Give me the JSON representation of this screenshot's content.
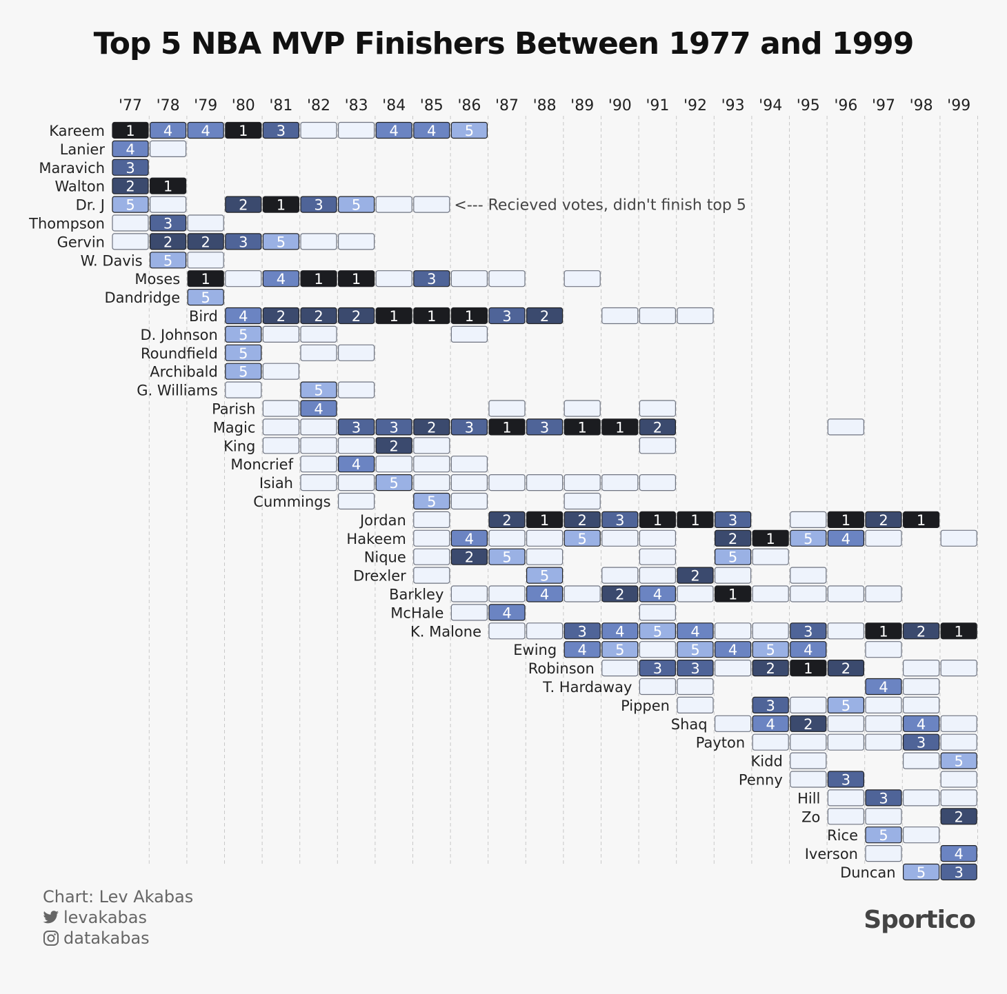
{
  "title": "Top 5 NBA MVP Finishers Between 1977 and 1999",
  "annotation": "<--- Recieved votes, didn't finish top 5",
  "credits": {
    "chart_by": "Chart: Lev Akabas",
    "twitter": "levakabas",
    "instagram": "datakabas"
  },
  "brand": "Sportico",
  "colors": {
    "1": "#1b1c20",
    "2": "#3b4a6e",
    "3": "#4f6498",
    "4": "#6b84c2",
    "5": "#9ab1e4",
    "votes": "#eef3fc"
  },
  "chart_data": {
    "type": "table",
    "years": [
      "'77",
      "'78",
      "'79",
      "'80",
      "'81",
      "'82",
      "'83",
      "'84",
      "'85",
      "'86",
      "'87",
      "'88",
      "'89",
      "'90",
      "'91",
      "'92",
      "'93",
      "'94",
      "'95",
      "'96",
      "'97",
      "'98",
      "'99"
    ],
    "legend_note": "0 = Recieved votes, didn't finish top 5; null = no votes",
    "players": [
      {
        "name": "Kareem",
        "ranks": [
          1,
          4,
          4,
          1,
          3,
          0,
          0,
          4,
          4,
          5,
          null,
          null,
          null,
          null,
          null,
          null,
          null,
          null,
          null,
          null,
          null,
          null,
          null
        ]
      },
      {
        "name": "Lanier",
        "ranks": [
          4,
          0,
          null,
          null,
          null,
          null,
          null,
          null,
          null,
          null,
          null,
          null,
          null,
          null,
          null,
          null,
          null,
          null,
          null,
          null,
          null,
          null,
          null
        ]
      },
      {
        "name": "Maravich",
        "ranks": [
          3,
          null,
          null,
          null,
          null,
          null,
          null,
          null,
          null,
          null,
          null,
          null,
          null,
          null,
          null,
          null,
          null,
          null,
          null,
          null,
          null,
          null,
          null
        ]
      },
      {
        "name": "Walton",
        "ranks": [
          2,
          1,
          null,
          null,
          null,
          null,
          null,
          null,
          null,
          null,
          null,
          null,
          null,
          null,
          null,
          null,
          null,
          null,
          null,
          null,
          null,
          null,
          null
        ]
      },
      {
        "name": "Dr. J",
        "ranks": [
          5,
          0,
          null,
          2,
          1,
          3,
          5,
          0,
          0,
          null,
          null,
          null,
          null,
          null,
          null,
          null,
          null,
          null,
          null,
          null,
          null,
          null,
          null
        ]
      },
      {
        "name": "Thompson",
        "ranks": [
          0,
          3,
          0,
          null,
          null,
          null,
          null,
          null,
          null,
          null,
          null,
          null,
          null,
          null,
          null,
          null,
          null,
          null,
          null,
          null,
          null,
          null,
          null
        ]
      },
      {
        "name": "Gervin",
        "ranks": [
          0,
          2,
          2,
          3,
          5,
          0,
          0,
          null,
          null,
          null,
          null,
          null,
          null,
          null,
          null,
          null,
          null,
          null,
          null,
          null,
          null,
          null,
          null
        ]
      },
      {
        "name": "W. Davis",
        "ranks": [
          null,
          5,
          0,
          null,
          null,
          null,
          null,
          null,
          null,
          null,
          null,
          null,
          null,
          null,
          null,
          null,
          null,
          null,
          null,
          null,
          null,
          null,
          null
        ]
      },
      {
        "name": "Moses",
        "ranks": [
          null,
          null,
          1,
          0,
          4,
          1,
          1,
          0,
          3,
          0,
          0,
          null,
          0,
          null,
          null,
          null,
          null,
          null,
          null,
          null,
          null,
          null,
          null
        ]
      },
      {
        "name": "Dandridge",
        "ranks": [
          null,
          null,
          5,
          null,
          null,
          null,
          null,
          null,
          null,
          null,
          null,
          null,
          null,
          null,
          null,
          null,
          null,
          null,
          null,
          null,
          null,
          null,
          null
        ]
      },
      {
        "name": "Bird",
        "ranks": [
          null,
          null,
          null,
          4,
          2,
          2,
          2,
          1,
          1,
          1,
          3,
          2,
          null,
          0,
          0,
          0,
          null,
          null,
          null,
          null,
          null,
          null,
          null
        ]
      },
      {
        "name": "D. Johnson",
        "ranks": [
          null,
          null,
          null,
          5,
          0,
          0,
          null,
          null,
          null,
          0,
          null,
          null,
          null,
          null,
          null,
          null,
          null,
          null,
          null,
          null,
          null,
          null,
          null
        ]
      },
      {
        "name": "Roundfield",
        "ranks": [
          null,
          null,
          null,
          5,
          null,
          0,
          0,
          null,
          null,
          null,
          null,
          null,
          null,
          null,
          null,
          null,
          null,
          null,
          null,
          null,
          null,
          null,
          null
        ]
      },
      {
        "name": "Archibald",
        "ranks": [
          null,
          null,
          null,
          5,
          0,
          null,
          null,
          null,
          null,
          null,
          null,
          null,
          null,
          null,
          null,
          null,
          null,
          null,
          null,
          null,
          null,
          null,
          null
        ]
      },
      {
        "name": "G. Williams",
        "ranks": [
          null,
          null,
          null,
          0,
          null,
          5,
          0,
          null,
          null,
          null,
          null,
          null,
          null,
          null,
          null,
          null,
          null,
          null,
          null,
          null,
          null,
          null,
          null
        ]
      },
      {
        "name": "Parish",
        "ranks": [
          null,
          null,
          null,
          null,
          0,
          4,
          null,
          null,
          null,
          null,
          0,
          null,
          0,
          null,
          0,
          null,
          null,
          null,
          null,
          null,
          null,
          null,
          null
        ]
      },
      {
        "name": "Magic",
        "ranks": [
          null,
          null,
          null,
          null,
          0,
          0,
          3,
          3,
          2,
          3,
          1,
          3,
          1,
          1,
          2,
          null,
          null,
          null,
          null,
          0,
          null,
          null,
          null
        ]
      },
      {
        "name": "King",
        "ranks": [
          null,
          null,
          null,
          null,
          0,
          0,
          0,
          2,
          0,
          null,
          null,
          null,
          null,
          null,
          0,
          null,
          null,
          null,
          null,
          null,
          null,
          null,
          null
        ]
      },
      {
        "name": "Moncrief",
        "ranks": [
          null,
          null,
          null,
          null,
          null,
          0,
          4,
          0,
          0,
          0,
          null,
          null,
          null,
          null,
          null,
          null,
          null,
          null,
          null,
          null,
          null,
          null,
          null
        ]
      },
      {
        "name": "Isiah",
        "ranks": [
          null,
          null,
          null,
          null,
          null,
          0,
          0,
          5,
          0,
          0,
          0,
          0,
          0,
          0,
          0,
          null,
          null,
          null,
          null,
          null,
          null,
          null,
          null
        ]
      },
      {
        "name": "Cummings",
        "ranks": [
          null,
          null,
          null,
          null,
          null,
          null,
          0,
          null,
          5,
          0,
          null,
          null,
          0,
          null,
          null,
          null,
          null,
          null,
          null,
          null,
          null,
          null,
          null
        ]
      },
      {
        "name": "Jordan",
        "ranks": [
          null,
          null,
          null,
          null,
          null,
          null,
          null,
          null,
          0,
          null,
          2,
          1,
          2,
          3,
          1,
          1,
          3,
          null,
          0,
          1,
          2,
          1,
          null
        ]
      },
      {
        "name": "Hakeem",
        "ranks": [
          null,
          null,
          null,
          null,
          null,
          null,
          null,
          null,
          0,
          4,
          0,
          0,
          5,
          0,
          0,
          null,
          2,
          1,
          5,
          4,
          0,
          null,
          0
        ]
      },
      {
        "name": "Nique",
        "ranks": [
          null,
          null,
          null,
          null,
          null,
          null,
          null,
          null,
          0,
          2,
          5,
          0,
          null,
          null,
          0,
          null,
          5,
          0,
          null,
          null,
          null,
          null,
          null
        ]
      },
      {
        "name": "Drexler",
        "ranks": [
          null,
          null,
          null,
          null,
          null,
          null,
          null,
          null,
          0,
          null,
          null,
          5,
          null,
          0,
          0,
          2,
          0,
          null,
          0,
          null,
          null,
          null,
          null
        ]
      },
      {
        "name": "Barkley",
        "ranks": [
          null,
          null,
          null,
          null,
          null,
          null,
          null,
          null,
          null,
          0,
          0,
          4,
          0,
          2,
          4,
          0,
          1,
          0,
          0,
          0,
          0,
          null,
          null
        ]
      },
      {
        "name": "McHale",
        "ranks": [
          null,
          null,
          null,
          null,
          null,
          null,
          null,
          null,
          null,
          0,
          4,
          null,
          null,
          null,
          0,
          null,
          null,
          null,
          null,
          null,
          null,
          null,
          null
        ]
      },
      {
        "name": "K. Malone",
        "ranks": [
          null,
          null,
          null,
          null,
          null,
          null,
          null,
          null,
          null,
          null,
          0,
          0,
          3,
          4,
          5,
          4,
          0,
          0,
          3,
          0,
          1,
          2,
          1
        ]
      },
      {
        "name": "Ewing",
        "ranks": [
          null,
          null,
          null,
          null,
          null,
          null,
          null,
          null,
          null,
          null,
          null,
          null,
          4,
          5,
          0,
          5,
          4,
          5,
          4,
          null,
          0,
          null,
          null
        ]
      },
      {
        "name": "Robinson",
        "ranks": [
          null,
          null,
          null,
          null,
          null,
          null,
          null,
          null,
          null,
          null,
          null,
          null,
          null,
          0,
          3,
          3,
          0,
          2,
          1,
          2,
          null,
          0,
          0
        ]
      },
      {
        "name": "T. Hardaway",
        "ranks": [
          null,
          null,
          null,
          null,
          null,
          null,
          null,
          null,
          null,
          null,
          null,
          null,
          null,
          null,
          0,
          0,
          null,
          null,
          null,
          null,
          4,
          0,
          null
        ]
      },
      {
        "name": "Pippen",
        "ranks": [
          null,
          null,
          null,
          null,
          null,
          null,
          null,
          null,
          null,
          null,
          null,
          null,
          null,
          null,
          null,
          0,
          null,
          3,
          0,
          5,
          0,
          0,
          null
        ]
      },
      {
        "name": "Shaq",
        "ranks": [
          null,
          null,
          null,
          null,
          null,
          null,
          null,
          null,
          null,
          null,
          null,
          null,
          null,
          null,
          null,
          null,
          0,
          4,
          2,
          0,
          0,
          4,
          0
        ]
      },
      {
        "name": "Payton",
        "ranks": [
          null,
          null,
          null,
          null,
          null,
          null,
          null,
          null,
          null,
          null,
          null,
          null,
          null,
          null,
          null,
          null,
          null,
          0,
          0,
          0,
          0,
          3,
          0
        ]
      },
      {
        "name": "Kidd",
        "ranks": [
          null,
          null,
          null,
          null,
          null,
          null,
          null,
          null,
          null,
          null,
          null,
          null,
          null,
          null,
          null,
          null,
          null,
          null,
          0,
          null,
          null,
          0,
          5
        ]
      },
      {
        "name": "Penny",
        "ranks": [
          null,
          null,
          null,
          null,
          null,
          null,
          null,
          null,
          null,
          null,
          null,
          null,
          null,
          null,
          null,
          null,
          null,
          null,
          0,
          3,
          null,
          null,
          0
        ]
      },
      {
        "name": "Hill",
        "ranks": [
          null,
          null,
          null,
          null,
          null,
          null,
          null,
          null,
          null,
          null,
          null,
          null,
          null,
          null,
          null,
          null,
          null,
          null,
          null,
          0,
          3,
          0,
          0
        ]
      },
      {
        "name": "Zo",
        "ranks": [
          null,
          null,
          null,
          null,
          null,
          null,
          null,
          null,
          null,
          null,
          null,
          null,
          null,
          null,
          null,
          null,
          null,
          null,
          null,
          0,
          0,
          null,
          2
        ]
      },
      {
        "name": "Rice",
        "ranks": [
          null,
          null,
          null,
          null,
          null,
          null,
          null,
          null,
          null,
          null,
          null,
          null,
          null,
          null,
          null,
          null,
          null,
          null,
          null,
          null,
          5,
          0,
          null
        ]
      },
      {
        "name": "Iverson",
        "ranks": [
          null,
          null,
          null,
          null,
          null,
          null,
          null,
          null,
          null,
          null,
          null,
          null,
          null,
          null,
          null,
          null,
          null,
          null,
          null,
          null,
          0,
          null,
          4
        ]
      },
      {
        "name": "Duncan",
        "ranks": [
          null,
          null,
          null,
          null,
          null,
          null,
          null,
          null,
          null,
          null,
          null,
          null,
          null,
          null,
          null,
          null,
          null,
          null,
          null,
          null,
          null,
          5,
          3
        ]
      }
    ]
  }
}
